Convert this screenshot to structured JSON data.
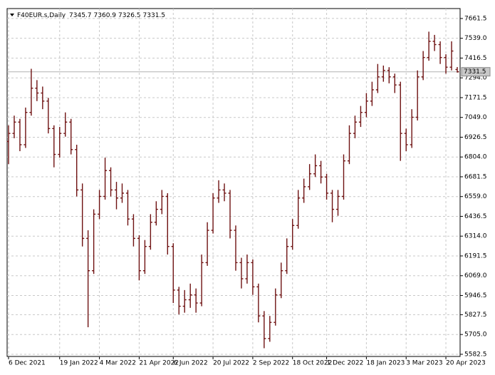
{
  "chart_data": {
    "type": "ohlc",
    "title": "F40EUR.s,Daily",
    "color": "#6e1111",
    "grid": true,
    "price_line_color": "#b0b0b0",
    "ylim": [
      5569,
      7723
    ],
    "yticks": [
      5582.5,
      {
        "value": 5705,
        "label": "5705.0"
      },
      5827.5,
      5946.5,
      {
        "value": 6069,
        "label": "6069.0"
      },
      6191.5,
      {
        "value": 6314,
        "label": "6314.0"
      },
      6436.5,
      {
        "value": 6559,
        "label": "6559.0"
      },
      6681.5,
      {
        "value": 6804,
        "label": "6804.0"
      },
      6926.5,
      {
        "value": 7049,
        "label": "7049.0"
      },
      7171.5,
      {
        "value": 7294,
        "label": "7294.0"
      },
      7416.5,
      {
        "value": 7539,
        "label": "7539.0"
      },
      7661.5
    ],
    "categories": [
      "6 Dec 2021",
      null,
      null,
      null,
      null,
      null,
      null,
      null,
      null,
      "19 Jan 2022",
      null,
      null,
      null,
      null,
      null,
      null,
      "4 Mar 2022",
      null,
      null,
      null,
      null,
      null,
      null,
      "21 Apr 2022",
      null,
      null,
      null,
      null,
      null,
      "6 Jun 2022",
      null,
      null,
      null,
      null,
      null,
      null,
      "20 Jul 2022",
      null,
      null,
      null,
      null,
      null,
      null,
      "2 Sep 2022",
      null,
      null,
      null,
      null,
      null,
      null,
      "18 Oct 2022",
      null,
      null,
      null,
      null,
      null,
      "1 Dec 2022",
      null,
      null,
      null,
      null,
      null,
      null,
      "18 Jan 2023",
      null,
      null,
      null,
      null,
      null,
      null,
      "3 Mar 2023",
      null,
      null,
      null,
      null,
      null,
      null,
      "20 Apr 2023",
      null,
      null
    ],
    "ohlc": [
      [
        6900,
        7000,
        6760,
        6950
      ],
      [
        6950,
        7060,
        6920,
        7020
      ],
      [
        7020,
        7040,
        6840,
        6880
      ],
      [
        6880,
        7110,
        6860,
        7080
      ],
      [
        7080,
        7350,
        7060,
        7230
      ],
      [
        7230,
        7280,
        7150,
        7200
      ],
      [
        7200,
        7240,
        7100,
        7150
      ],
      [
        7150,
        7170,
        6950,
        6980
      ],
      [
        6980,
        7000,
        6740,
        6820
      ],
      [
        6820,
        6990,
        6800,
        6950
      ],
      [
        6950,
        7080,
        6930,
        7020
      ],
      [
        7020,
        7040,
        6820,
        6850
      ],
      [
        6850,
        6880,
        6560,
        6600
      ],
      [
        6600,
        6640,
        6250,
        6300
      ],
      [
        6300,
        6350,
        5750,
        6100
      ],
      [
        6100,
        6480,
        6080,
        6450
      ],
      [
        6450,
        6600,
        6420,
        6560
      ],
      [
        6560,
        6800,
        6540,
        6720
      ],
      [
        6720,
        6740,
        6560,
        6600
      ],
      [
        6600,
        6650,
        6480,
        6550
      ],
      [
        6550,
        6640,
        6520,
        6580
      ],
      [
        6580,
        6600,
        6380,
        6420
      ],
      [
        6420,
        6450,
        6250,
        6300
      ],
      [
        6300,
        6320,
        6040,
        6100
      ],
      [
        6100,
        6290,
        6080,
        6250
      ],
      [
        6250,
        6450,
        6230,
        6400
      ],
      [
        6400,
        6530,
        6380,
        6480
      ],
      [
        6480,
        6600,
        6450,
        6560
      ],
      [
        6560,
        6580,
        6200,
        6250
      ],
      [
        6250,
        6270,
        5900,
        5980
      ],
      [
        5980,
        6000,
        5830,
        5880
      ],
      [
        5880,
        5980,
        5840,
        5920
      ],
      [
        5920,
        6020,
        5870,
        5950
      ],
      [
        5950,
        5990,
        5840,
        5900
      ],
      [
        5900,
        6200,
        5880,
        6150
      ],
      [
        6150,
        6400,
        6130,
        6350
      ],
      [
        6350,
        6580,
        6330,
        6550
      ],
      [
        6550,
        6660,
        6520,
        6600
      ],
      [
        6600,
        6640,
        6530,
        6580
      ],
      [
        6580,
        6600,
        6300,
        6350
      ],
      [
        6350,
        6380,
        6100,
        6150
      ],
      [
        6150,
        6180,
        5990,
        6050
      ],
      [
        6050,
        6200,
        6020,
        6150
      ],
      [
        6150,
        6170,
        5950,
        6000
      ],
      [
        6000,
        6020,
        5780,
        5820
      ],
      [
        5820,
        5850,
        5620,
        5680
      ],
      [
        5680,
        5820,
        5660,
        5780
      ],
      [
        5780,
        5990,
        5760,
        5950
      ],
      [
        5950,
        6150,
        5930,
        6100
      ],
      [
        6100,
        6300,
        6080,
        6250
      ],
      [
        6250,
        6420,
        6230,
        6380
      ],
      [
        6380,
        6600,
        6360,
        6550
      ],
      [
        6550,
        6670,
        6520,
        6620
      ],
      [
        6620,
        6760,
        6600,
        6700
      ],
      [
        6700,
        6820,
        6680,
        6750
      ],
      [
        6750,
        6780,
        6640,
        6680
      ],
      [
        6680,
        6700,
        6540,
        6580
      ],
      [
        6580,
        6600,
        6400,
        6480
      ],
      [
        6480,
        6600,
        6440,
        6560
      ],
      [
        6560,
        6820,
        6540,
        6780
      ],
      [
        6780,
        7000,
        6760,
        6950
      ],
      [
        6950,
        7060,
        6920,
        7020
      ],
      [
        7020,
        7120,
        6990,
        7080
      ],
      [
        7080,
        7200,
        7050,
        7150
      ],
      [
        7150,
        7270,
        7120,
        7220
      ],
      [
        7220,
        7380,
        7200,
        7300
      ],
      [
        7300,
        7370,
        7270,
        7340
      ],
      [
        7340,
        7360,
        7260,
        7300
      ],
      [
        7300,
        7320,
        7200,
        7250
      ],
      [
        7250,
        7270,
        6780,
        6950
      ],
      [
        6950,
        6980,
        6840,
        6880
      ],
      [
        6880,
        7100,
        6860,
        7050
      ],
      [
        7050,
        7340,
        7030,
        7300
      ],
      [
        7300,
        7460,
        7280,
        7420
      ],
      [
        7420,
        7580,
        7400,
        7520
      ],
      [
        7520,
        7560,
        7460,
        7500
      ],
      [
        7500,
        7520,
        7380,
        7420
      ],
      [
        7420,
        7440,
        7320,
        7360
      ],
      [
        7360,
        7520,
        7340,
        7460
      ],
      [
        7345.7,
        7360.9,
        7326.5,
        7331.5
      ]
    ]
  }
}
